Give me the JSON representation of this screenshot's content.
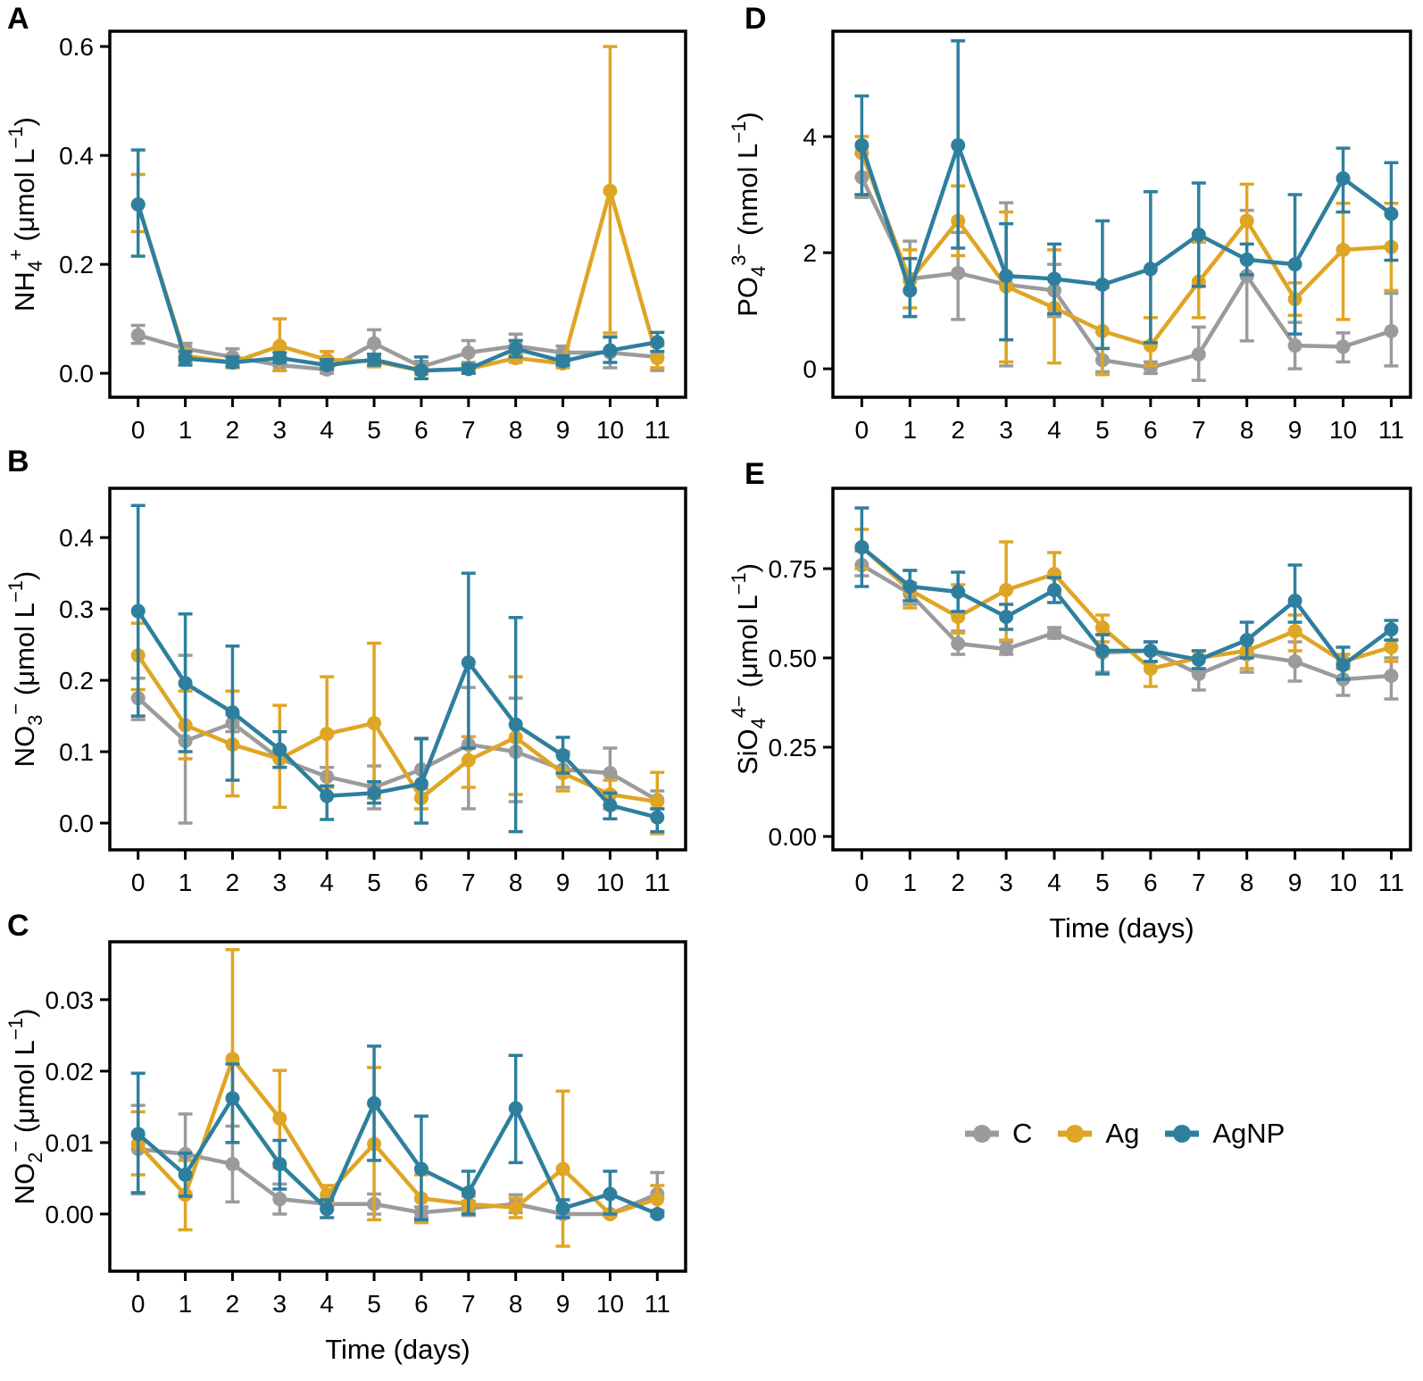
{
  "legend": {
    "items": [
      {
        "label": "C",
        "color": "#9B9B9B"
      },
      {
        "label": "Ag",
        "color": "#DFA524"
      },
      {
        "label": "AgNP",
        "color": "#2E7F9E"
      }
    ]
  },
  "colors": {
    "control": "#9B9B9B",
    "silver": "#DFA524",
    "silver_nanoparticle": "#2E7F9E",
    "axis": "#000000"
  },
  "chart_data": [
    {
      "panel_label": "A",
      "type": "line",
      "xlabel": "",
      "ylabel_parts": [
        {
          "t": "NH"
        },
        {
          "t": "4",
          "s": "sub"
        },
        {
          "t": "+",
          "s": "sup"
        },
        {
          "t": " (μmol L"
        },
        {
          "t": "−1",
          "s": "sup"
        },
        {
          "t": ")"
        }
      ],
      "x": [
        0,
        1,
        2,
        3,
        4,
        5,
        6,
        7,
        8,
        9,
        10,
        11
      ],
      "x_ticks": [
        "0",
        "1",
        "2",
        "3",
        "4",
        "5",
        "6",
        "7",
        "8",
        "9",
        "10",
        "11"
      ],
      "y_ticks": [
        {
          "v": 0.0,
          "label": "0.0"
        },
        {
          "v": 0.2,
          "label": "0.2"
        },
        {
          "v": 0.4,
          "label": "0.4"
        },
        {
          "v": 0.6,
          "label": "0.6"
        }
      ],
      "ylim": [
        -0.044,
        0.628
      ],
      "series": [
        {
          "name": "C",
          "color": "#9B9B9B",
          "values": [
            0.07,
            0.045,
            0.03,
            0.015,
            0.007,
            0.055,
            0.012,
            0.038,
            0.05,
            0.038,
            0.038,
            0.03
          ],
          "err_lo": [
            0.055,
            0.03,
            0.02,
            0.005,
            0.0,
            0.035,
            0.002,
            0.02,
            0.035,
            0.025,
            0.01,
            0.005
          ],
          "err_hi": [
            0.088,
            0.055,
            0.045,
            0.03,
            0.02,
            0.08,
            0.022,
            0.06,
            0.072,
            0.05,
            0.066,
            0.054
          ]
        },
        {
          "name": "Ag",
          "color": "#DFA524",
          "values": [
            0.31,
            0.032,
            0.02,
            0.05,
            0.025,
            0.022,
            0.005,
            0.008,
            0.028,
            0.018,
            0.335,
            0.028
          ],
          "err_lo": [
            0.26,
            0.02,
            0.01,
            0.005,
            0.01,
            0.012,
            -0.002,
            0.0,
            0.02,
            0.01,
            0.074,
            0.01
          ],
          "err_hi": [
            0.365,
            0.045,
            0.03,
            0.1,
            0.04,
            0.032,
            0.012,
            0.015,
            0.038,
            0.028,
            0.6,
            0.05
          ]
        },
        {
          "name": "AgNP",
          "color": "#2E7F9E",
          "values": [
            0.31,
            0.027,
            0.02,
            0.028,
            0.015,
            0.025,
            0.005,
            0.008,
            0.045,
            0.022,
            0.042,
            0.057
          ],
          "err_lo": [
            0.215,
            0.015,
            0.012,
            0.02,
            0.008,
            0.015,
            -0.01,
            0.0,
            0.03,
            0.015,
            0.02,
            0.04
          ],
          "err_hi": [
            0.41,
            0.04,
            0.03,
            0.038,
            0.025,
            0.035,
            0.03,
            0.016,
            0.06,
            0.032,
            0.067,
            0.075
          ]
        }
      ]
    },
    {
      "panel_label": "B",
      "type": "line",
      "xlabel": "",
      "ylabel_parts": [
        {
          "t": "NO"
        },
        {
          "t": "3",
          "s": "sub"
        },
        {
          "t": "−",
          "s": "sup"
        },
        {
          "t": " (μmol L"
        },
        {
          "t": "−1",
          "s": "sup"
        },
        {
          "t": ")"
        }
      ],
      "x": [
        0,
        1,
        2,
        3,
        4,
        5,
        6,
        7,
        8,
        9,
        10,
        11
      ],
      "x_ticks": [
        "0",
        "1",
        "2",
        "3",
        "4",
        "5",
        "6",
        "7",
        "8",
        "9",
        "10",
        "11"
      ],
      "y_ticks": [
        {
          "v": 0.0,
          "label": "0.0"
        },
        {
          "v": 0.1,
          "label": "0.1"
        },
        {
          "v": 0.2,
          "label": "0.2"
        },
        {
          "v": 0.3,
          "label": "0.3"
        },
        {
          "v": 0.4,
          "label": "0.4"
        }
      ],
      "ylim": [
        -0.0375,
        0.469
      ],
      "series": [
        {
          "name": "C",
          "color": "#9B9B9B",
          "values": [
            0.175,
            0.115,
            0.14,
            0.09,
            0.065,
            0.05,
            0.075,
            0.11,
            0.1,
            0.075,
            0.07,
            0.032
          ],
          "err_lo": [
            0.145,
            0.0,
            0.128,
            0.078,
            0.052,
            0.02,
            0.035,
            0.02,
            0.03,
            0.05,
            0.04,
            0.02
          ],
          "err_hi": [
            0.203,
            0.235,
            0.152,
            0.103,
            0.078,
            0.08,
            0.119,
            0.19,
            0.175,
            0.1,
            0.105,
            0.045
          ]
        },
        {
          "name": "Ag",
          "color": "#DFA524",
          "values": [
            0.235,
            0.137,
            0.11,
            0.09,
            0.125,
            0.14,
            0.035,
            0.088,
            0.12,
            0.07,
            0.04,
            0.03
          ],
          "err_lo": [
            0.187,
            0.09,
            0.038,
            0.022,
            0.05,
            0.035,
            0.02,
            0.05,
            0.04,
            0.045,
            0.02,
            -0.015
          ],
          "err_hi": [
            0.28,
            0.185,
            0.185,
            0.165,
            0.205,
            0.252,
            0.048,
            0.121,
            0.205,
            0.095,
            0.06,
            0.071
          ]
        },
        {
          "name": "AgNP",
          "color": "#2E7F9E",
          "values": [
            0.297,
            0.196,
            0.155,
            0.103,
            0.038,
            0.042,
            0.055,
            0.225,
            0.138,
            0.095,
            0.025,
            0.008
          ],
          "err_lo": [
            0.15,
            0.1,
            0.06,
            0.078,
            0.005,
            0.028,
            0.0,
            0.105,
            -0.012,
            0.07,
            0.006,
            -0.012
          ],
          "err_hi": [
            0.445,
            0.293,
            0.248,
            0.128,
            0.052,
            0.058,
            0.118,
            0.35,
            0.288,
            0.12,
            0.042,
            0.02
          ]
        }
      ]
    },
    {
      "panel_label": "C",
      "type": "line",
      "xlabel": "Time (days)",
      "ylabel_parts": [
        {
          "t": "NO"
        },
        {
          "t": "2",
          "s": "sub"
        },
        {
          "t": "−",
          "s": "sup"
        },
        {
          "t": " (μmol L"
        },
        {
          "t": "−1",
          "s": "sup"
        },
        {
          "t": ")"
        }
      ],
      "x": [
        0,
        1,
        2,
        3,
        4,
        5,
        6,
        7,
        8,
        9,
        10,
        11
      ],
      "x_ticks": [
        "0",
        "1",
        "2",
        "3",
        "4",
        "5",
        "6",
        "7",
        "8",
        "9",
        "10",
        "11"
      ],
      "y_ticks": [
        {
          "v": 0.0,
          "label": "0.00"
        },
        {
          "v": 0.01,
          "label": "0.01"
        },
        {
          "v": 0.02,
          "label": "0.02"
        },
        {
          "v": 0.03,
          "label": "0.03"
        }
      ],
      "ylim": [
        -0.008,
        0.0381
      ],
      "series": [
        {
          "name": "C",
          "color": "#9B9B9B",
          "values": [
            0.0091,
            0.0084,
            0.007,
            0.0021,
            0.0014,
            0.0014,
            0.0002,
            0.0008,
            0.0014,
            0.0,
            0.0,
            0.0028
          ],
          "err_lo": [
            0.0028,
            0.003,
            0.0017,
            0.0,
            0.0008,
            0.0,
            -0.0005,
            -0.0002,
            0.0002,
            -0.0005,
            -0.0003,
            0.0005
          ],
          "err_hi": [
            0.0152,
            0.014,
            0.0123,
            0.0042,
            0.002,
            0.0028,
            0.001,
            0.0018,
            0.0027,
            0.0005,
            0.0003,
            0.0058
          ]
        },
        {
          "name": "Ag",
          "color": "#DFA524",
          "values": [
            0.0098,
            0.0027,
            0.0217,
            0.0134,
            0.0027,
            0.0098,
            0.0022,
            0.0014,
            0.0009,
            0.0063,
            0.0,
            0.0021
          ],
          "err_lo": [
            0.0055,
            -0.0022,
            0.01,
            0.0065,
            0.0015,
            -0.0008,
            -0.0012,
            0.0005,
            -0.0005,
            -0.0045,
            0.0,
            0.0005
          ],
          "err_hi": [
            0.0143,
            0.0075,
            0.037,
            0.0201,
            0.004,
            0.0205,
            0.0055,
            0.0025,
            0.0022,
            0.0172,
            0.0,
            0.004
          ]
        },
        {
          "name": "AgNP",
          "color": "#2E7F9E",
          "values": [
            0.0112,
            0.0055,
            0.0162,
            0.007,
            0.0007,
            0.0155,
            0.0063,
            0.003,
            0.0148,
            0.0008,
            0.0028,
            0.0
          ],
          "err_lo": [
            0.003,
            0.0025,
            0.01,
            0.0035,
            -0.0005,
            0.0075,
            -0.0008,
            0.0,
            0.0072,
            -0.0005,
            0.0,
            -0.0003
          ],
          "err_hi": [
            0.0197,
            0.0085,
            0.021,
            0.0103,
            0.002,
            0.0235,
            0.0137,
            0.006,
            0.0222,
            0.002,
            0.006,
            0.0003
          ]
        }
      ]
    },
    {
      "panel_label": "D",
      "type": "line",
      "xlabel": "",
      "ylabel_parts": [
        {
          "t": "PO"
        },
        {
          "t": "4",
          "s": "sub"
        },
        {
          "t": "3−",
          "s": "sup"
        },
        {
          "t": " (nmol L"
        },
        {
          "t": "−1",
          "s": "sup"
        },
        {
          "t": ")"
        }
      ],
      "x": [
        0,
        1,
        2,
        3,
        4,
        5,
        6,
        7,
        8,
        9,
        10,
        11
      ],
      "x_ticks": [
        "0",
        "1",
        "2",
        "3",
        "4",
        "5",
        "6",
        "7",
        "8",
        "9",
        "10",
        "11"
      ],
      "y_ticks": [
        {
          "v": 0,
          "label": "0"
        },
        {
          "v": 2,
          "label": "2"
        },
        {
          "v": 4,
          "label": "4"
        }
      ],
      "ylim": [
        -0.49,
        5.815
      ],
      "series": [
        {
          "name": "C",
          "color": "#9B9B9B",
          "values": [
            3.3,
            1.55,
            1.65,
            1.45,
            1.35,
            0.15,
            0.02,
            0.25,
            1.6,
            0.4,
            0.38,
            0.65
          ],
          "err_lo": [
            2.95,
            0.9,
            0.85,
            0.05,
            0.9,
            -0.05,
            -0.08,
            -0.2,
            0.48,
            0.0,
            0.12,
            0.05
          ],
          "err_hi": [
            3.7,
            2.2,
            2.35,
            2.86,
            1.8,
            0.35,
            0.12,
            0.72,
            2.73,
            0.8,
            0.62,
            1.3
          ]
        },
        {
          "name": "Ag",
          "color": "#DFA524",
          "values": [
            3.72,
            1.52,
            2.55,
            1.42,
            1.05,
            0.65,
            0.4,
            1.5,
            2.55,
            1.2,
            2.05,
            2.1
          ],
          "err_lo": [
            3.0,
            1.05,
            1.95,
            0.12,
            0.1,
            -0.1,
            0.05,
            0.88,
            1.9,
            0.92,
            0.85,
            1.35
          ],
          "err_hi": [
            4.0,
            2.05,
            3.15,
            2.7,
            2.05,
            1.4,
            0.88,
            2.18,
            3.18,
            1.48,
            2.85,
            2.85
          ]
        },
        {
          "name": "AgNP",
          "color": "#2E7F9E",
          "values": [
            3.85,
            1.35,
            3.85,
            1.6,
            1.55,
            1.45,
            1.72,
            2.31,
            1.88,
            1.8,
            3.28,
            2.67
          ],
          "err_lo": [
            3.0,
            0.9,
            2.08,
            0.5,
            0.95,
            0.35,
            0.45,
            1.42,
            1.62,
            0.6,
            2.7,
            1.87
          ],
          "err_hi": [
            4.7,
            1.9,
            5.65,
            2.5,
            2.15,
            2.55,
            3.05,
            3.2,
            2.15,
            3.0,
            3.8,
            3.55
          ]
        }
      ]
    },
    {
      "panel_label": "E",
      "type": "line",
      "xlabel": "Time (days)",
      "ylabel_parts": [
        {
          "t": "SiO"
        },
        {
          "t": "4",
          "s": "sub"
        },
        {
          "t": "4−",
          "s": "sup"
        },
        {
          "t": " (μmol L"
        },
        {
          "t": "−1",
          "s": "sup"
        },
        {
          "t": ")"
        }
      ],
      "x": [
        0,
        1,
        2,
        3,
        4,
        5,
        6,
        7,
        8,
        9,
        10,
        11
      ],
      "x_ticks": [
        "0",
        "1",
        "2",
        "3",
        "4",
        "5",
        "6",
        "7",
        "8",
        "9",
        "10",
        "11"
      ],
      "y_ticks": [
        {
          "v": 0.0,
          "label": "0.00"
        },
        {
          "v": 0.25,
          "label": "0.25"
        },
        {
          "v": 0.5,
          "label": "0.50"
        },
        {
          "v": 0.75,
          "label": "0.75"
        }
      ],
      "ylim": [
        -0.0375,
        0.975
      ],
      "series": [
        {
          "name": "C",
          "color": "#9B9B9B",
          "values": [
            0.76,
            0.68,
            0.54,
            0.525,
            0.57,
            0.515,
            0.52,
            0.455,
            0.51,
            0.49,
            0.44,
            0.45
          ],
          "err_lo": [
            0.73,
            0.65,
            0.51,
            0.51,
            0.555,
            0.46,
            0.49,
            0.41,
            0.46,
            0.435,
            0.395,
            0.385
          ],
          "err_hi": [
            0.8,
            0.71,
            0.575,
            0.545,
            0.585,
            0.565,
            0.545,
            0.5,
            0.55,
            0.545,
            0.48,
            0.5
          ]
        },
        {
          "name": "Ag",
          "color": "#DFA524",
          "values": [
            0.81,
            0.69,
            0.615,
            0.69,
            0.735,
            0.585,
            0.47,
            0.5,
            0.52,
            0.575,
            0.49,
            0.53
          ],
          "err_lo": [
            0.75,
            0.64,
            0.57,
            0.55,
            0.68,
            0.545,
            0.42,
            0.47,
            0.47,
            0.52,
            0.47,
            0.49
          ],
          "err_hi": [
            0.86,
            0.745,
            0.705,
            0.825,
            0.795,
            0.62,
            0.52,
            0.52,
            0.55,
            0.62,
            0.51,
            0.55
          ]
        },
        {
          "name": "AgNP",
          "color": "#2E7F9E",
          "values": [
            0.81,
            0.7,
            0.685,
            0.615,
            0.69,
            0.52,
            0.52,
            0.495,
            0.55,
            0.66,
            0.48,
            0.58
          ],
          "err_lo": [
            0.7,
            0.66,
            0.63,
            0.58,
            0.655,
            0.455,
            0.49,
            0.47,
            0.5,
            0.6,
            0.44,
            0.55
          ],
          "err_hi": [
            0.92,
            0.745,
            0.74,
            0.65,
            0.725,
            0.565,
            0.545,
            0.52,
            0.6,
            0.76,
            0.53,
            0.605
          ]
        }
      ]
    }
  ]
}
